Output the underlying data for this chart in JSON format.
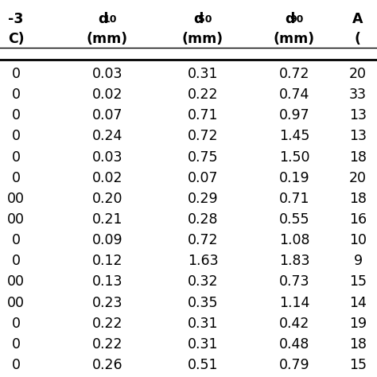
{
  "left_col_values": [
    "0",
    "0",
    "0",
    "0",
    "0",
    "0",
    "00",
    "00",
    "0",
    "0",
    "00",
    "00",
    "0",
    "0",
    "0"
  ],
  "d10_values": [
    "0.03",
    "0.02",
    "0.07",
    "0.24",
    "0.03",
    "0.02",
    "0.20",
    "0.21",
    "0.09",
    "0.12",
    "0.13",
    "0.23",
    "0.22",
    "0.22",
    "0.26"
  ],
  "d50_values": [
    "0.31",
    "0.22",
    "0.71",
    "0.72",
    "0.75",
    "0.07",
    "0.29",
    "0.28",
    "0.72",
    "1.63",
    "0.32",
    "0.35",
    "0.31",
    "0.31",
    "0.51"
  ],
  "d90_values": [
    "0.72",
    "0.74",
    "0.97",
    "1.45",
    "1.50",
    "0.19",
    "0.71",
    "0.55",
    "1.08",
    "1.83",
    "0.73",
    "1.14",
    "0.42",
    "0.48",
    "0.79"
  ],
  "right_col_values": [
    "20",
    "33",
    "13",
    "13",
    "18",
    "20",
    "18",
    "16",
    "10",
    "9",
    "15",
    "14",
    "19",
    "18",
    "15"
  ],
  "background_color": "#ffffff",
  "text_color": "#000000",
  "header_fontsize": 12.5,
  "cell_fontsize": 12.5
}
